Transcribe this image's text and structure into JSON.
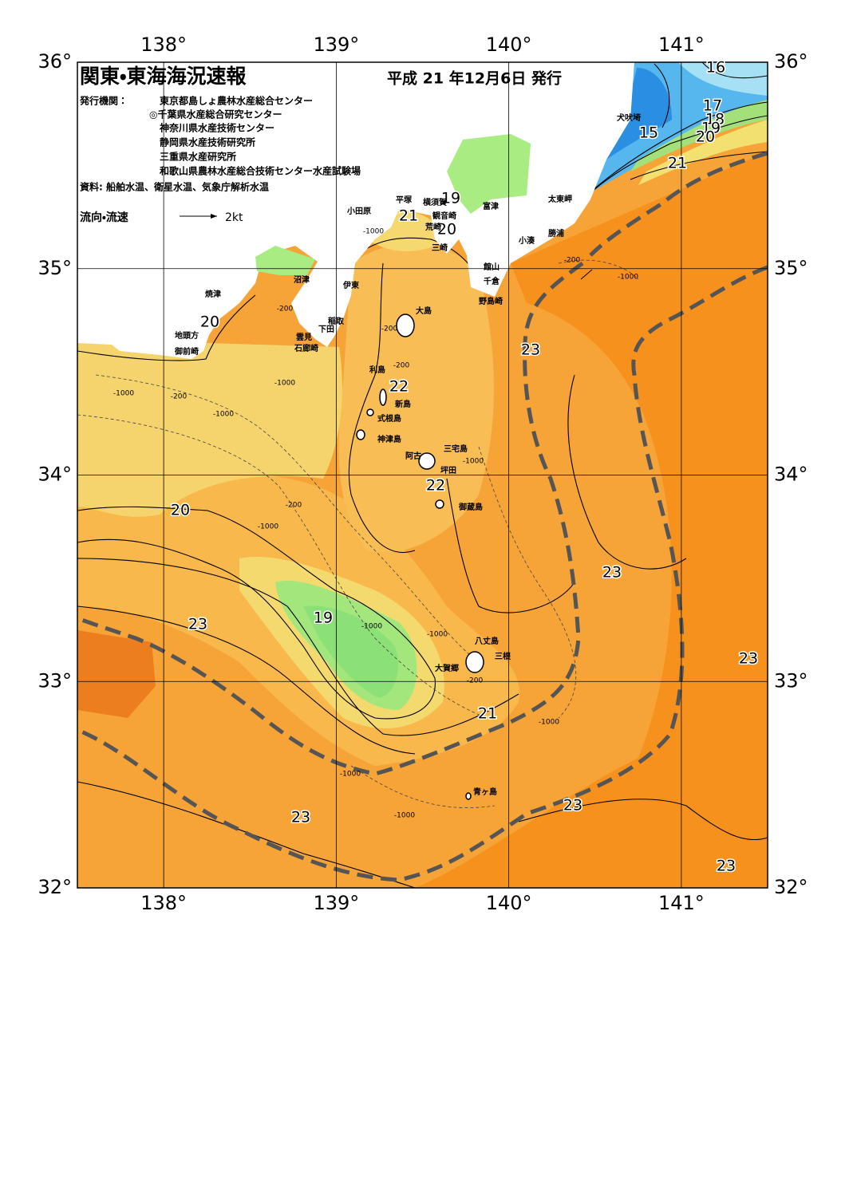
{
  "header": {
    "title": "関東・東海海況速報",
    "date": "平成 21 年12月6日 発行",
    "issuer_label": "発行機関：",
    "issuers": [
      "東京都島しょ農林水産総合センター",
      "◎千葉県水産総合研究センター",
      "神奈川県水産技術センター",
      "静岡県水産技術研究所",
      "三重県水産研究所",
      "和歌山県農林水産総合技術センター水産試験場"
    ],
    "source": "資料: 船舶水温、衛星水温、気象庁解析水温",
    "legend": {
      "label": "流向・流速",
      "scale": "2kt"
    }
  },
  "map": {
    "lonlim": [
      137.5,
      141.5
    ],
    "latlim": [
      32,
      36
    ],
    "lon_ticks": [
      {
        "value": 138,
        "label": "138°"
      },
      {
        "value": 139,
        "label": "139°"
      },
      {
        "value": 140,
        "label": "140°"
      },
      {
        "value": 141,
        "label": "141°"
      }
    ],
    "lat_ticks": [
      {
        "value": 32,
        "label": "32°"
      },
      {
        "value": 33,
        "label": "33°"
      },
      {
        "value": 34,
        "label": "34°"
      },
      {
        "value": 35,
        "label": "35°"
      },
      {
        "value": 36,
        "label": "36°"
      }
    ],
    "isotherm_labels": [
      16,
      17,
      18,
      19,
      20,
      15,
      21,
      21,
      19,
      20,
      20,
      23,
      22,
      22,
      20,
      23,
      19,
      23,
      23,
      21,
      23,
      23,
      23
    ],
    "depth_labels": [
      -1000,
      -200,
      -200,
      -200,
      -1000,
      -200,
      -1000,
      -1000,
      -200,
      -1000,
      -1000,
      -1000,
      -1000,
      -200,
      -1000,
      -1000,
      -1000,
      -1000,
      -200
    ],
    "places": [
      "小田原",
      "平塚",
      "横須賀",
      "富津",
      "観音崎",
      "荒崎",
      "三崎",
      "館山",
      "千倉",
      "野島崎",
      "太東岬",
      "勝浦",
      "小湊",
      "犬吠埼",
      "沼津",
      "伊東",
      "焼津",
      "稲取",
      "下田",
      "雲見",
      "石廊崎",
      "地頭方",
      "御前崎",
      "大島",
      "利島",
      "新島",
      "式根島",
      "神津島",
      "阿古",
      "三宅島",
      "坪田",
      "御蔵島",
      "八丈島",
      "三根",
      "大賀郷",
      "青ヶ島"
    ]
  }
}
